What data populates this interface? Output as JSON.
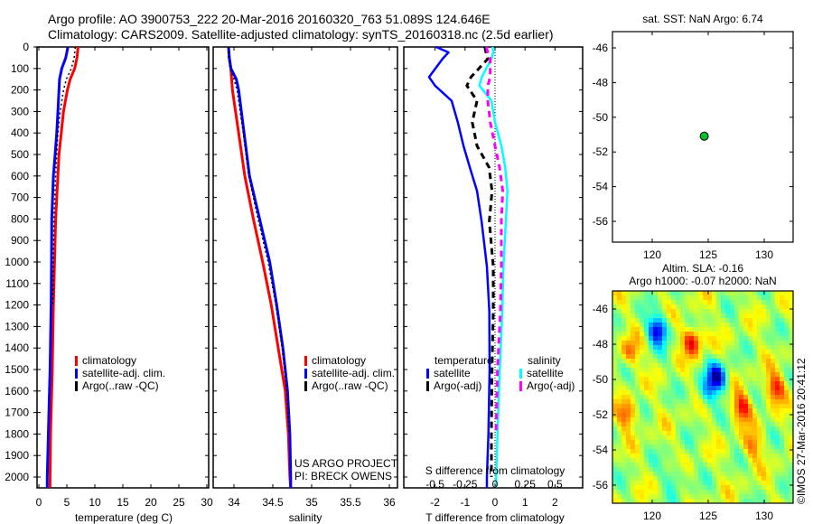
{
  "title": {
    "line1": "Argo profile: AO 3900753_222 20-Mar-2016 20160320_763 51.089S 124.646E",
    "line2": "Climatology: CARS2009. Satellite-adjusted climatology: synTS_20160318.nc (2.5d earlier)"
  },
  "credit": {
    "project": "US ARGO PROJECT",
    "pi": "PI: BRECK OWENS",
    "stamp": "©IMOS 27-Mar-2016 20:41:12"
  },
  "colors": {
    "climatology": "#ff0000",
    "satellite": "#0000ff",
    "argo": "#000000",
    "sal_satellite": "#00ffff",
    "sal_argo": "#ff00ff",
    "dot": "#00c030"
  },
  "chart_data": [
    {
      "id": "temperature",
      "type": "line",
      "xlabel": "temperature (deg C)",
      "xlim": [
        -0.3,
        30.5
      ],
      "xticks": [
        "0",
        "5",
        "10",
        "15",
        "20",
        "25",
        "30"
      ],
      "ylim": [
        0,
        2050
      ],
      "yticks": [
        "0",
        "100",
        "200",
        "300",
        "400",
        "500",
        "600",
        "700",
        "800",
        "900",
        "1000",
        "1100",
        "1200",
        "1300",
        "1400",
        "1500",
        "1600",
        "1700",
        "1800",
        "1900",
        "2000"
      ],
      "depth": [
        0,
        50,
        100,
        150,
        200,
        300,
        400,
        500,
        600,
        800,
        1000,
        1200,
        1500,
        1800,
        2000,
        2050
      ],
      "series": [
        {
          "name": "climatology",
          "values": [
            7.0,
            6.8,
            6.4,
            5.6,
            5.1,
            4.4,
            4.0,
            3.6,
            3.4,
            3.0,
            2.8,
            2.6,
            2.4,
            2.1,
            2.0,
            2.0
          ]
        },
        {
          "name": "satellite-adj. clim.",
          "values": [
            5.2,
            4.8,
            4.1,
            3.7,
            3.6,
            3.4,
            3.2,
            2.9,
            2.6,
            2.3,
            2.25,
            2.2,
            2.0,
            1.7,
            1.5,
            1.5
          ]
        },
        {
          "name": "Argo(..raw -QC)",
          "values": [
            6.5,
            6.3,
            5.8,
            4.9,
            4.4,
            3.8,
            3.4,
            3.2,
            3.0,
            2.7,
            2.6,
            2.5,
            null,
            null,
            null,
            null
          ]
        }
      ],
      "legend": [
        "climatology",
        "satellite-adj. clim.",
        "Argo(..raw -QC)"
      ]
    },
    {
      "id": "salinity",
      "type": "line",
      "xlabel": "salinity",
      "xlim": [
        33.73,
        36.12
      ],
      "xticks": [
        "34",
        "34.5",
        "35",
        "35.5",
        "36"
      ],
      "ylim": [
        0,
        2050
      ],
      "depth": [
        0,
        50,
        100,
        150,
        200,
        400,
        600,
        800,
        1000,
        1200,
        1400,
        1600,
        1800,
        2000,
        2050
      ],
      "series": [
        {
          "name": "climatology",
          "values": [
            33.93,
            33.94,
            33.96,
            33.97,
            33.98,
            34.06,
            34.14,
            34.25,
            34.37,
            34.48,
            34.57,
            34.66,
            34.7,
            34.72,
            34.73
          ]
        },
        {
          "name": "satellite-adj. clim.",
          "values": [
            33.93,
            33.94,
            33.96,
            34.03,
            34.06,
            34.13,
            34.2,
            34.33,
            34.46,
            34.55,
            34.63,
            34.69,
            34.72,
            34.73,
            34.73
          ]
        },
        {
          "name": "Argo(..raw -QC)",
          "values": [
            33.93,
            33.93,
            33.95,
            34.0,
            34.04,
            34.12,
            34.19,
            34.31,
            34.44,
            34.54,
            34.62,
            34.68,
            34.71,
            null,
            null
          ]
        }
      ],
      "legend": [
        "climatology",
        "satellite-adj. clim.",
        "Argo(..raw -QC)"
      ]
    },
    {
      "id": "difference",
      "type": "line",
      "xlabel": "T difference from climatology",
      "xlabel_top": "S difference from climatology",
      "xlim": [
        -3.04,
        2.92
      ],
      "xticks": [
        "-2",
        "-1",
        "0",
        "1",
        "2"
      ],
      "sticks": [
        "-0.5",
        "-0.25",
        "0",
        "0.25",
        "0.5"
      ],
      "ylim": [
        0,
        2050
      ],
      "depth": [
        0,
        25,
        55,
        140,
        180,
        250,
        350,
        460,
        560,
        670,
        810,
        1020,
        1230,
        1500,
        1800,
        2000,
        2050
      ],
      "series": [
        {
          "name": "temperature satellite",
          "axis": "T",
          "values": [
            -1.96,
            -1.55,
            -1.75,
            -2.2,
            -2.0,
            -1.45,
            -1.24,
            -1.05,
            -0.84,
            -0.6,
            -0.45,
            -0.27,
            -0.19,
            -0.18,
            -0.22,
            -0.27,
            -0.27
          ]
        },
        {
          "name": "temperature Argo(-adj)",
          "axis": "T",
          "values": [
            -0.34,
            -0.3,
            -0.24,
            -0.8,
            -0.94,
            -0.6,
            -0.76,
            -0.6,
            -0.2,
            -0.1,
            -0.19,
            -0.06,
            -0.06,
            -0.1,
            -0.12,
            -0.12,
            null
          ]
        },
        {
          "name": "salinity satellite",
          "axis": "S",
          "values": [
            -0.02,
            -0.015,
            -0.03,
            -0.11,
            -0.13,
            -0.03,
            0.0,
            0.053,
            0.085,
            0.103,
            0.09,
            0.07,
            0.06,
            0.04,
            0.02,
            0.01,
            0.008
          ]
        },
        {
          "name": "salinity Argo(-adj)",
          "axis": "S",
          "values": [
            -0.073,
            -0.06,
            -0.04,
            -0.04,
            -0.06,
            -0.06,
            -0.04,
            0.0,
            0.038,
            0.065,
            0.053,
            0.053,
            0.045,
            0.02,
            0.008,
            null,
            null
          ]
        }
      ],
      "legend": {
        "temperature": "temperature",
        "salinity": "salinity",
        "satellite": "satellite",
        "argo": "Argo(-adj)"
      }
    },
    {
      "id": "sst-map",
      "type": "scatter",
      "title": "sat. SST: NaN Argo: 6.74",
      "xlim": [
        116.45,
        132.6
      ],
      "ylim": [
        -57.2,
        -45.06
      ],
      "xticks": [
        "120",
        "125",
        "130"
      ],
      "yticks": [
        "-46",
        "-48",
        "-50",
        "-52",
        "-54",
        "-56"
      ],
      "points": [
        {
          "lon": 124.646,
          "lat": -51.089
        }
      ]
    },
    {
      "id": "sla-map",
      "type": "heatmap",
      "title1": "Altim. SLA: -0.16",
      "title2": "Argo h1000: -0.07 h2000: NaN",
      "xlim": [
        116.45,
        132.6
      ],
      "ylim": [
        -57.1,
        -45.0
      ],
      "xticks": [
        "120",
        "125",
        "130"
      ],
      "yticks": [
        "-46",
        "-48",
        "-50",
        "-52",
        "-54",
        "-56"
      ],
      "features": [
        {
          "lon": 120.5,
          "lat": -47.2,
          "value": -0.45
        },
        {
          "lon": 125.8,
          "lat": -49.9,
          "value": -0.45
        },
        {
          "lon": 124.9,
          "lat": -50.8,
          "value": -0.2
        },
        {
          "lon": 123.6,
          "lat": -47.8,
          "value": 0.35
        },
        {
          "lon": 128.0,
          "lat": -51.6,
          "value": 0.32
        },
        {
          "lon": 131.0,
          "lat": -50.5,
          "value": 0.3
        },
        {
          "lon": 117.8,
          "lat": -52.0,
          "value": 0.25
        },
        {
          "lon": 129.0,
          "lat": -53.8,
          "value": 0.2
        },
        {
          "lon": 118.0,
          "lat": -48.5,
          "value": 0.2
        },
        {
          "lon": 122.0,
          "lat": -55.5,
          "value": -0.15
        }
      ]
    }
  ]
}
